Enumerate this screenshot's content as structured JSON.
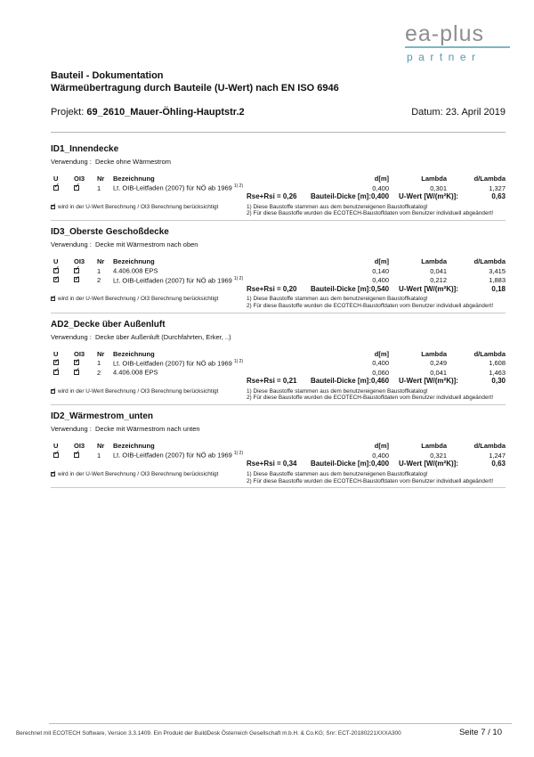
{
  "logo": {
    "main": "ea-plus",
    "sub": "partner",
    "main_color": "#8e8e8e",
    "sub_color": "#4f98b4",
    "rule_color": "#7cb6c4"
  },
  "header": {
    "title_line1": "Bauteil - Dokumentation",
    "title_line2": "Wärmeübertragung durch Bauteile (U-Wert) nach EN ISO 6946",
    "project_label": "Projekt:",
    "project_value": "69_2610_Mauer-Öhling-Hauptstr.2",
    "date_label": "Datum:",
    "date_value": "23. April 2019"
  },
  "table_headers": {
    "u": "U",
    "oi3": "OI3",
    "nr": "Nr",
    "bezeichnung": "Bezeichnung",
    "d": "d[m]",
    "lambda": "Lambda",
    "d_lambda": "d/Lambda"
  },
  "summary_labels": {
    "dicke": "Bauteil-Dicke [m]:",
    "u_wert": "U-Wert [W/(m²K)]:"
  },
  "notes": {
    "checkbox_checked": true,
    "checkbox_note": "wird in der U-Wert Berechnung / OI3 Berechnung berücksichtigt",
    "note1": "1) Diese Baustoffe stammen aus dem benutzereigenen Baustoffkatalog!",
    "note2": "2) Für diese Baustoffe wurden die ECOTECH-Baustoffdaten vom Benutzer individuell abgeändert!"
  },
  "sections": [
    {
      "title": "ID1_Innendecke",
      "verwendung_label": "Verwendung :",
      "verwendung": "Decke ohne Wärmestrom",
      "rows": [
        {
          "u_checked": true,
          "oi3_checked": true,
          "nr": "1",
          "name": "Lt. OIB-Leitfaden (2007) für NÖ ab 1969",
          "sup": "1) 2)",
          "d": "0,400",
          "lambda": "0,301",
          "d_lambda": "1,327"
        }
      ],
      "rse_rsi": "Rse+Rsi = 0,26",
      "dicke": "0,400",
      "u_wert": "0,63"
    },
    {
      "title": "ID3_Oberste Geschoßdecke",
      "verwendung_label": "Verwendung :",
      "verwendung": "Decke mit Wärmestrom nach oben",
      "rows": [
        {
          "u_checked": true,
          "oi3_checked": true,
          "nr": "1",
          "name": "4.406.008 EPS",
          "sup": "",
          "d": "0,140",
          "lambda": "0,041",
          "d_lambda": "3,415"
        },
        {
          "u_checked": true,
          "oi3_checked": true,
          "nr": "2",
          "name": "Lt. OIB-Leitfaden (2007) für NÖ ab 1969",
          "sup": "1) 2)",
          "d": "0,400",
          "lambda": "0,212",
          "d_lambda": "1,883"
        }
      ],
      "rse_rsi": "Rse+Rsi = 0,20",
      "dicke": "0,540",
      "u_wert": "0,18"
    },
    {
      "title": "AD2_Decke über Außenluft",
      "verwendung_label": "Verwendung :",
      "verwendung": "Decke über Außenluft (Durchfahrten, Erker, ..)",
      "rows": [
        {
          "u_checked": true,
          "oi3_checked": true,
          "nr": "1",
          "name": "Lt. OIB-Leitfaden (2007) für NÖ ab 1969",
          "sup": "1) 2)",
          "d": "0,400",
          "lambda": "0,249",
          "d_lambda": "1,608"
        },
        {
          "u_checked": true,
          "oi3_checked": true,
          "nr": "2",
          "name": "4.406.008 EPS",
          "sup": "",
          "d": "0,060",
          "lambda": "0,041",
          "d_lambda": "1,463"
        }
      ],
      "rse_rsi": "Rse+Rsi = 0,21",
      "dicke": "0,460",
      "u_wert": "0,30"
    },
    {
      "title": "ID2_Wärmestrom_unten",
      "verwendung_label": "Verwendung :",
      "verwendung": "Decke mit Wärmestrom nach unten",
      "rows": [
        {
          "u_checked": true,
          "oi3_checked": true,
          "nr": "1",
          "name": "Lt. OIB-Leitfaden (2007) für NÖ ab 1969",
          "sup": "1) 2)",
          "d": "0,400",
          "lambda": "0,321",
          "d_lambda": "1,247"
        }
      ],
      "rse_rsi": "Rse+Rsi = 0,34",
      "dicke": "0,400",
      "u_wert": "0,63"
    }
  ],
  "footer": {
    "left": "Berechnet mit ECOTECH Software, Version 3.3.1409. Ein Produkt der BuildDesk Österreich Gesellschaft m.b.H. & Co.KG; Snr: ECT-20180221XXXA300",
    "page": "Seite 7 / 10"
  }
}
